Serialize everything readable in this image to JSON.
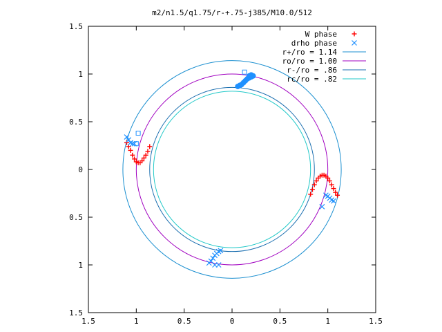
{
  "chart_data": {
    "type": "scatter",
    "title": "m2/n1.5/q1.75/r-+.75-j385/M10.0/512",
    "xlabel": "",
    "ylabel": "",
    "xlim": [
      -1.5,
      1.5
    ],
    "ylim": [
      -1.5,
      1.5
    ],
    "x_ticks": [
      -1.5,
      -1,
      -0.5,
      0,
      0.5,
      1,
      1.5
    ],
    "x_tick_labels": [
      "1.5",
      "1",
      "0.5",
      "0",
      "0.5",
      "1",
      "1.5"
    ],
    "y_ticks": [
      1.5,
      1,
      0.5,
      0,
      -0.5,
      -1,
      -1.5
    ],
    "y_tick_labels": [
      "1.5",
      "1",
      "0.5",
      "0",
      "0.5",
      "1",
      "1.5"
    ],
    "grid": false,
    "legend_position": "top-right",
    "colors": {
      "w_phase": "#ff0000",
      "drho_phase": "#1e90ff",
      "r_plus": "#1b8fd0",
      "r_o": "#a000c0",
      "r_minus": "#1b6fb0",
      "r_c": "#20c8c8",
      "hollow_markers": "#1e90ff"
    },
    "circles": [
      {
        "name": "r+/ro = 1.14",
        "radius": 1.14
      },
      {
        "name": "ro/ro = 1.00",
        "radius": 1.0
      },
      {
        "name": "r-/ro = .86",
        "radius": 0.86
      },
      {
        "name": "rc/ro = .82",
        "radius": 0.82
      }
    ],
    "series": [
      {
        "name": "W phase",
        "marker": "plus",
        "points": [
          [
            -1.1,
            0.28
          ],
          [
            -1.08,
            0.24
          ],
          [
            -1.06,
            0.2
          ],
          [
            -1.04,
            0.15
          ],
          [
            -1.02,
            0.11
          ],
          [
            -1.0,
            0.08
          ],
          [
            -0.98,
            0.07
          ],
          [
            -0.96,
            0.07
          ],
          [
            -0.94,
            0.09
          ],
          [
            -0.92,
            0.12
          ],
          [
            -0.9,
            0.15
          ],
          [
            -0.88,
            0.19
          ],
          [
            -0.86,
            0.24
          ],
          [
            0.82,
            -0.26
          ],
          [
            0.84,
            -0.21
          ],
          [
            0.86,
            -0.16
          ],
          [
            0.88,
            -0.12
          ],
          [
            0.9,
            -0.09
          ],
          [
            0.92,
            -0.07
          ],
          [
            0.94,
            -0.06
          ],
          [
            0.96,
            -0.06
          ],
          [
            0.98,
            -0.07
          ],
          [
            1.0,
            -0.09
          ],
          [
            1.02,
            -0.12
          ],
          [
            1.04,
            -0.16
          ],
          [
            1.06,
            -0.2
          ],
          [
            1.08,
            -0.24
          ],
          [
            1.1,
            -0.27
          ]
        ]
      },
      {
        "name": "drho phase",
        "marker": "cross",
        "points": [
          [
            -1.1,
            0.34
          ],
          [
            -1.08,
            0.31
          ],
          [
            -1.06,
            0.28
          ],
          [
            -1.04,
            0.27
          ],
          [
            -1.02,
            0.27
          ],
          [
            0.98,
            -0.27
          ],
          [
            1.0,
            -0.28
          ],
          [
            1.02,
            -0.3
          ],
          [
            1.04,
            -0.32
          ],
          [
            1.06,
            -0.33
          ],
          [
            -0.24,
            -0.98
          ],
          [
            -0.22,
            -0.96
          ],
          [
            -0.2,
            -0.93
          ],
          [
            -0.18,
            -0.9
          ],
          [
            -0.16,
            -0.88
          ],
          [
            -0.14,
            -0.86
          ],
          [
            -0.12,
            -0.85
          ],
          [
            0.94,
            -0.39
          ],
          [
            -0.18,
            -1.0
          ],
          [
            -0.14,
            -1.0
          ]
        ]
      },
      {
        "name": "",
        "marker": "filled-circle",
        "points": [
          [
            0.06,
            0.87
          ],
          [
            0.08,
            0.88
          ],
          [
            0.1,
            0.89
          ],
          [
            0.12,
            0.91
          ],
          [
            0.14,
            0.93
          ],
          [
            0.16,
            0.95
          ],
          [
            0.18,
            0.96
          ],
          [
            0.2,
            0.97
          ],
          [
            0.22,
            0.98
          ],
          [
            0.2,
            0.99
          ],
          [
            0.18,
            0.98
          ]
        ]
      },
      {
        "name": "",
        "marker": "hollow-square",
        "points": [
          [
            0.13,
            1.02
          ],
          [
            -0.98,
            0.38
          ],
          [
            -1.0,
            0.27
          ]
        ]
      }
    ]
  }
}
